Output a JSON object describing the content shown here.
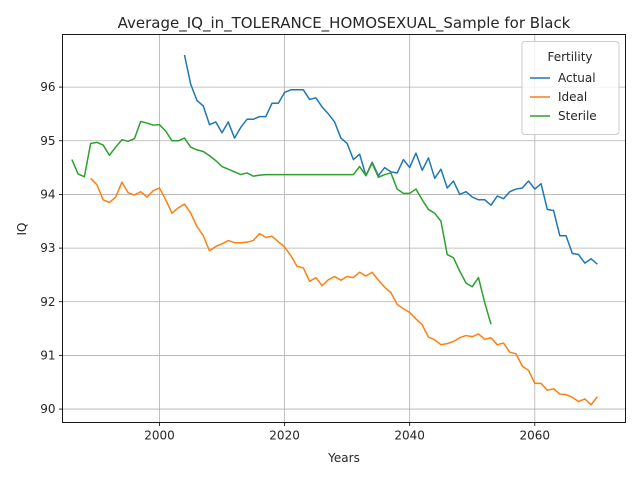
{
  "chart_data": {
    "type": "line",
    "title": "Average_IQ_in_TOLERANCE_HOMOSEXUAL_Sample for Black",
    "xlabel": "Years",
    "ylabel": "IQ",
    "xlim": [
      1984.5,
      2074.5
    ],
    "ylim": [
      89.75,
      96.98
    ],
    "xticks": [
      2000,
      2020,
      2040,
      2060
    ],
    "yticks": [
      90,
      91,
      92,
      93,
      94,
      95,
      96
    ],
    "grid": true,
    "legend": {
      "title": "Fertility",
      "position": "top-right"
    },
    "series": [
      {
        "name": "Actual",
        "color": "#1f77b4",
        "x": [
          2004,
          2005,
          2006,
          2007,
          2008,
          2009,
          2010,
          2011,
          2012,
          2013,
          2014,
          2015,
          2016,
          2017,
          2018,
          2019,
          2020,
          2021,
          2022,
          2023,
          2024,
          2025,
          2026,
          2027,
          2028,
          2029,
          2030,
          2031,
          2032,
          2033,
          2034,
          2035,
          2036,
          2037,
          2038,
          2039,
          2040,
          2041,
          2042,
          2043,
          2044,
          2045,
          2046,
          2047,
          2048,
          2049,
          2050,
          2051,
          2052,
          2053,
          2054,
          2055,
          2056,
          2057,
          2058,
          2059,
          2060,
          2061,
          2062,
          2063,
          2064,
          2065,
          2066,
          2067,
          2068,
          2069,
          2070
        ],
        "y": [
          96.6,
          96.05,
          95.75,
          95.65,
          95.3,
          95.35,
          95.15,
          95.35,
          95.05,
          95.25,
          95.4,
          95.4,
          95.45,
          95.45,
          95.7,
          95.7,
          95.9,
          95.95,
          95.95,
          95.95,
          95.77,
          95.8,
          95.63,
          95.5,
          95.35,
          95.05,
          94.95,
          94.65,
          94.75,
          94.35,
          94.6,
          94.35,
          94.5,
          94.42,
          94.4,
          94.65,
          94.5,
          94.77,
          94.45,
          94.68,
          94.3,
          94.47,
          94.12,
          94.25,
          94.0,
          94.05,
          93.95,
          93.9,
          93.9,
          93.8,
          93.97,
          93.92,
          94.05,
          94.1,
          94.12,
          94.25,
          94.1,
          94.2,
          93.72,
          93.7,
          93.23,
          93.23,
          92.9,
          92.88,
          92.72,
          92.8,
          92.7
        ]
      },
      {
        "name": "Ideal",
        "color": "#ff7f0e",
        "x": [
          1989,
          1990,
          1991,
          1992,
          1993,
          1994,
          1995,
          1996,
          1997,
          1998,
          1999,
          2000,
          2001,
          2002,
          2003,
          2004,
          2005,
          2006,
          2007,
          2008,
          2009,
          2010,
          2011,
          2012,
          2013,
          2014,
          2015,
          2016,
          2017,
          2018,
          2019,
          2020,
          2021,
          2022,
          2023,
          2024,
          2025,
          2026,
          2027,
          2028,
          2029,
          2030,
          2031,
          2032,
          2033,
          2034,
          2035,
          2036,
          2037,
          2038,
          2039,
          2040,
          2041,
          2042,
          2043,
          2044,
          2045,
          2046,
          2047,
          2048,
          2049,
          2050,
          2051,
          2052,
          2053,
          2054,
          2055,
          2056,
          2057,
          2058,
          2059,
          2060,
          2061,
          2062,
          2063,
          2064,
          2065,
          2066,
          2067,
          2068,
          2069,
          2070
        ],
        "y": [
          94.3,
          94.18,
          93.9,
          93.85,
          93.95,
          94.23,
          94.03,
          93.99,
          94.05,
          93.95,
          94.07,
          94.12,
          93.9,
          93.65,
          93.75,
          93.82,
          93.65,
          93.4,
          93.23,
          92.95,
          93.03,
          93.08,
          93.14,
          93.1,
          93.1,
          93.11,
          93.14,
          93.27,
          93.2,
          93.22,
          93.12,
          93.02,
          92.86,
          92.66,
          92.63,
          92.38,
          92.45,
          92.3,
          92.41,
          92.47,
          92.4,
          92.47,
          92.45,
          92.55,
          92.48,
          92.55,
          92.4,
          92.27,
          92.17,
          91.95,
          91.87,
          91.8,
          91.68,
          91.57,
          91.34,
          91.29,
          91.2,
          91.22,
          91.26,
          91.33,
          91.37,
          91.35,
          91.4,
          91.3,
          91.33,
          91.2,
          91.23,
          91.06,
          91.03,
          90.8,
          90.72,
          90.48,
          90.48,
          90.35,
          90.38,
          90.28,
          90.27,
          90.22,
          90.14,
          90.19,
          90.08,
          90.23
        ]
      },
      {
        "name": "Sterile",
        "color": "#2ca02c",
        "x": [
          1986,
          1987,
          1988,
          1989,
          1990,
          1991,
          1992,
          1993,
          1994,
          1995,
          1996,
          1997,
          1998,
          1999,
          2000,
          2001,
          2002,
          2003,
          2004,
          2005,
          2006,
          2007,
          2008,
          2009,
          2010,
          2011,
          2012,
          2013,
          2014,
          2015,
          2016,
          2017,
          2018,
          2019,
          2020,
          2021,
          2022,
          2023,
          2024,
          2025,
          2026,
          2027,
          2028,
          2029,
          2030,
          2031,
          2032,
          2033,
          2034,
          2035,
          2036,
          2037,
          2038,
          2039,
          2040,
          2041,
          2042,
          2043,
          2044,
          2045,
          2046,
          2047,
          2048,
          2049,
          2050,
          2051,
          2052,
          2053
        ],
        "y": [
          94.65,
          94.38,
          94.33,
          94.95,
          94.97,
          94.92,
          94.73,
          94.88,
          95.02,
          94.99,
          95.04,
          95.36,
          95.33,
          95.29,
          95.3,
          95.18,
          95.0,
          95.0,
          95.05,
          94.88,
          94.83,
          94.8,
          94.72,
          94.63,
          94.52,
          94.47,
          94.42,
          94.37,
          94.4,
          94.34,
          94.36,
          94.37,
          94.37,
          94.37,
          94.37,
          94.37,
          94.37,
          94.37,
          94.37,
          94.37,
          94.37,
          94.37,
          94.37,
          94.37,
          94.37,
          94.37,
          94.52,
          94.35,
          94.58,
          94.32,
          94.37,
          94.4,
          94.1,
          94.02,
          94.02,
          94.1,
          93.9,
          93.72,
          93.65,
          93.5,
          92.88,
          92.82,
          92.57,
          92.35,
          92.28,
          92.45,
          91.98,
          91.58
        ]
      }
    ]
  }
}
